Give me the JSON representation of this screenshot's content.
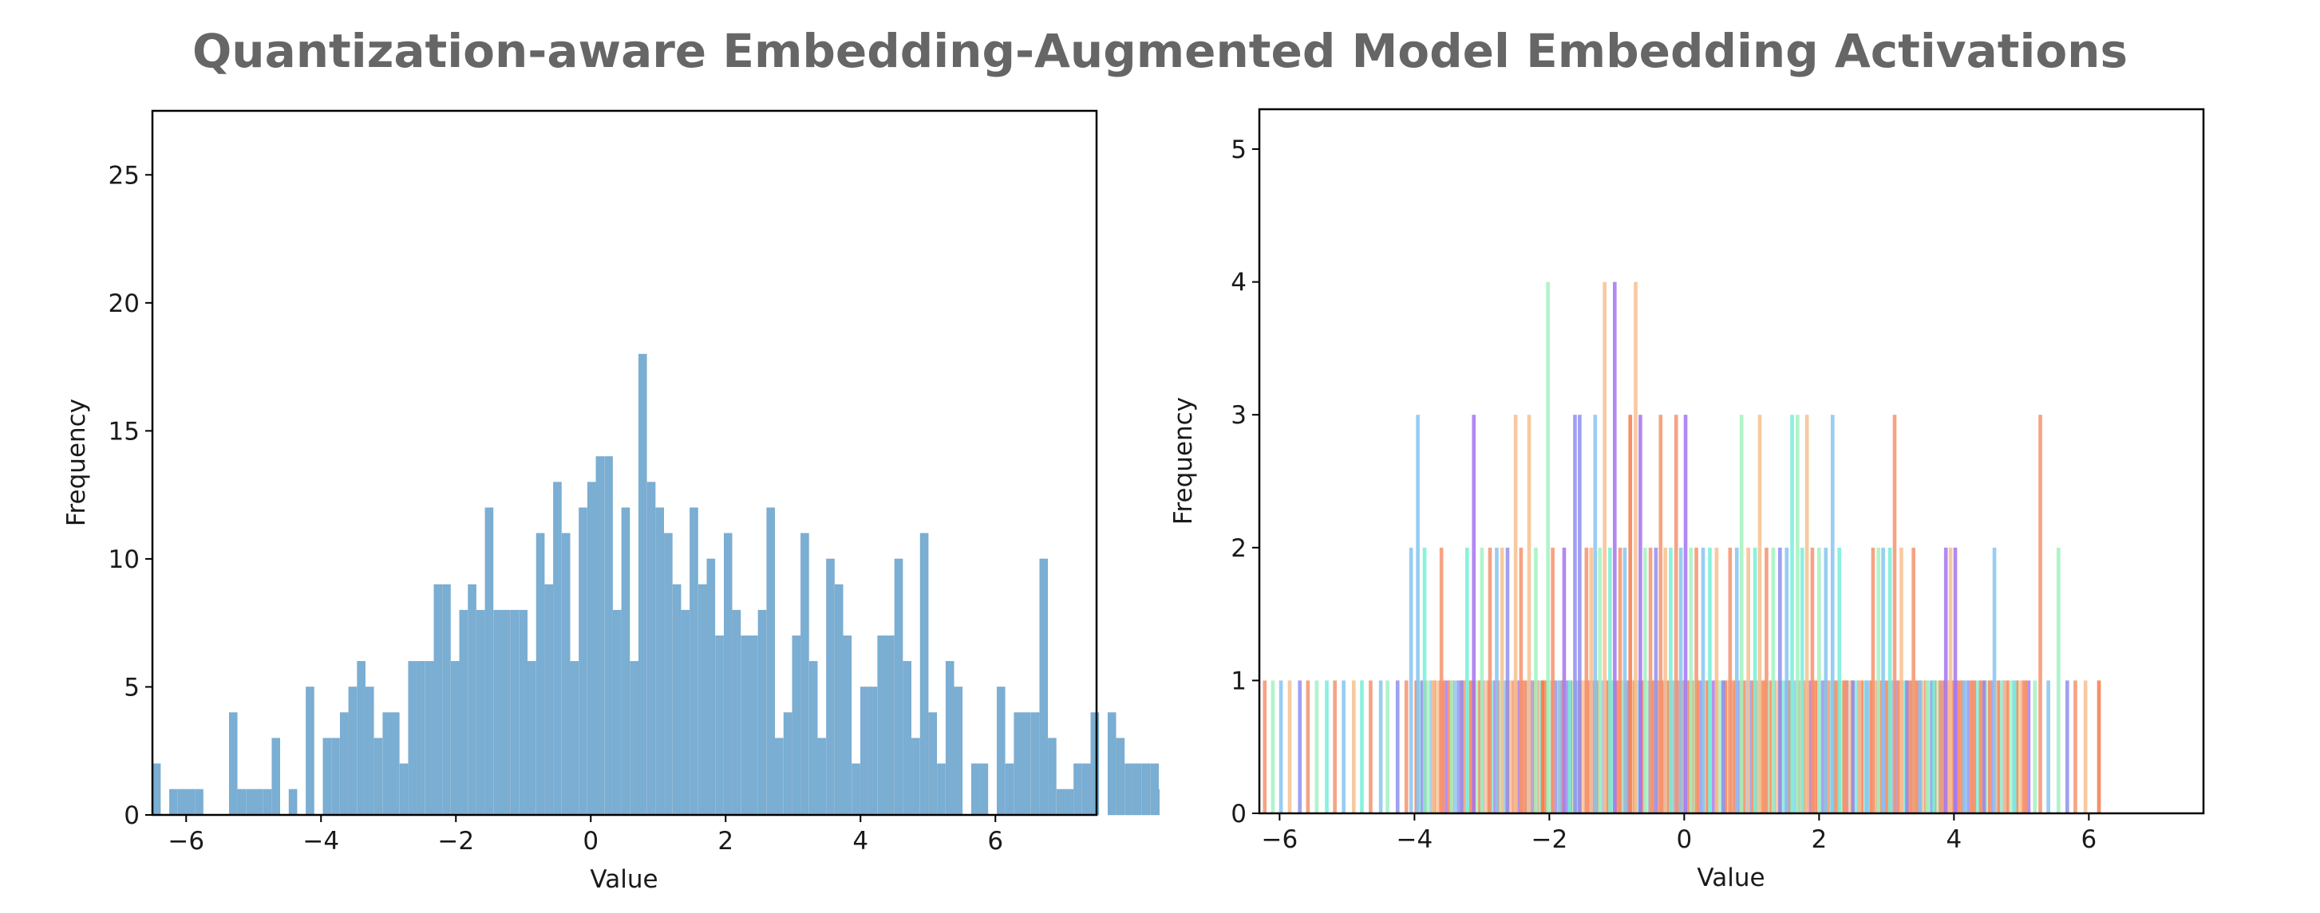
{
  "title": "Quantization-aware Embedding-Augmented Model Embedding Activations",
  "colors": {
    "title": "#666666",
    "left_bars": "#7aaed3",
    "right_palette": [
      "#f4936e",
      "#87c4f0",
      "#a574f0",
      "#f7c08f",
      "#a2f2bf",
      "#76eed8",
      "#8f8ff0",
      "#f47b4a"
    ]
  },
  "chart_data": [
    {
      "type": "bar",
      "subtype": "histogram",
      "title": "",
      "xlabel": "Value",
      "ylabel": "Frequency",
      "xlim": [
        -6.5,
        7.5
      ],
      "ylim": [
        0,
        27.5
      ],
      "xticks": [
        -6,
        -4,
        -2,
        0,
        2,
        4,
        6
      ],
      "xtick_labels": [
        "−6",
        "−4",
        "−2",
        "0",
        "2",
        "4",
        "6"
      ],
      "yticks": [
        0,
        5,
        10,
        15,
        20,
        25
      ],
      "ytick_labels": [
        "0",
        "5",
        "10",
        "15",
        "20",
        "25"
      ],
      "bin_start": -6.5,
      "bin_width": 0.1265,
      "counts": [
        2,
        0,
        1,
        1,
        1,
        1,
        0,
        0,
        0,
        4,
        1,
        1,
        1,
        1,
        3,
        0,
        1,
        0,
        5,
        0,
        3,
        3,
        4,
        5,
        6,
        5,
        3,
        4,
        4,
        2,
        6,
        6,
        6,
        9,
        9,
        6,
        8,
        9,
        8,
        12,
        8,
        8,
        8,
        8,
        6,
        11,
        9,
        13,
        11,
        6,
        12,
        13,
        14,
        14,
        8,
        12,
        6,
        18,
        13,
        12,
        11,
        9,
        8,
        12,
        9,
        10,
        7,
        11,
        8,
        7,
        7,
        8,
        12,
        3,
        4,
        7,
        11,
        6,
        3,
        10,
        9,
        7,
        2,
        5,
        5,
        7,
        7,
        10,
        6,
        3,
        11,
        4,
        2,
        6,
        5,
        0,
        2,
        2,
        0,
        5,
        2,
        4,
        4,
        4,
        10,
        3,
        1,
        1,
        2,
        2,
        4,
        0,
        4,
        3,
        2,
        2,
        2,
        2,
        1,
        0,
        2
      ],
      "grid": false,
      "legend": "none"
    },
    {
      "type": "bar",
      "subtype": "overlaid-histograms",
      "title": "",
      "xlabel": "Value",
      "ylabel": "Frequency",
      "xlim": [
        -6.3,
        7.7
      ],
      "ylim": [
        0,
        5.3
      ],
      "xticks": [
        -6,
        -4,
        -2,
        0,
        2,
        4,
        6
      ],
      "xtick_labels": [
        "−6",
        "−4",
        "−2",
        "0",
        "2",
        "4",
        "6"
      ],
      "yticks": [
        0,
        1,
        2,
        3,
        4,
        5
      ],
      "ytick_labels": [
        "0",
        "1",
        "2",
        "3",
        "4",
        "5"
      ],
      "bar_width": 0.055,
      "bars": [
        {
          "x": -6.22,
          "y": 1,
          "c": 0
        },
        {
          "x": -6.1,
          "y": 1,
          "c": 4
        },
        {
          "x": -5.98,
          "y": 1,
          "c": 1
        },
        {
          "x": -5.85,
          "y": 1,
          "c": 3
        },
        {
          "x": -5.7,
          "y": 1,
          "c": 6
        },
        {
          "x": -5.58,
          "y": 1,
          "c": 0
        },
        {
          "x": -5.45,
          "y": 1,
          "c": 4
        },
        {
          "x": -5.3,
          "y": 1,
          "c": 5
        },
        {
          "x": -5.18,
          "y": 1,
          "c": 0
        },
        {
          "x": -5.05,
          "y": 1,
          "c": 1
        },
        {
          "x": -4.9,
          "y": 1,
          "c": 3
        },
        {
          "x": -4.78,
          "y": 1,
          "c": 5
        },
        {
          "x": -4.65,
          "y": 1,
          "c": 0
        },
        {
          "x": -4.5,
          "y": 1,
          "c": 1
        },
        {
          "x": -4.4,
          "y": 1,
          "c": 4
        },
        {
          "x": -4.25,
          "y": 1,
          "c": 6
        },
        {
          "x": -4.12,
          "y": 1,
          "c": 0
        },
        {
          "x": -4.05,
          "y": 2,
          "c": 1
        },
        {
          "x": -3.95,
          "y": 3,
          "c": 1
        },
        {
          "x": -3.85,
          "y": 2,
          "c": 5
        },
        {
          "x": -3.72,
          "y": 1,
          "c": 3
        },
        {
          "x": -3.6,
          "y": 2,
          "c": 0
        },
        {
          "x": -3.45,
          "y": 1,
          "c": 4
        },
        {
          "x": -3.3,
          "y": 1,
          "c": 6
        },
        {
          "x": -3.22,
          "y": 2,
          "c": 5
        },
        {
          "x": -3.12,
          "y": 3,
          "c": 2
        },
        {
          "x": -3.0,
          "y": 2,
          "c": 4
        },
        {
          "x": -2.88,
          "y": 2,
          "c": 0
        },
        {
          "x": -2.78,
          "y": 2,
          "c": 1
        },
        {
          "x": -2.7,
          "y": 2,
          "c": 3
        },
        {
          "x": -2.62,
          "y": 2,
          "c": 6
        },
        {
          "x": -2.5,
          "y": 3,
          "c": 3
        },
        {
          "x": -2.42,
          "y": 2,
          "c": 0
        },
        {
          "x": -2.3,
          "y": 3,
          "c": 3
        },
        {
          "x": -2.2,
          "y": 2,
          "c": 4
        },
        {
          "x": -2.1,
          "y": 1,
          "c": 7
        },
        {
          "x": -2.02,
          "y": 4,
          "c": 4
        },
        {
          "x": -1.95,
          "y": 2,
          "c": 0
        },
        {
          "x": -1.85,
          "y": 1,
          "c": 1
        },
        {
          "x": -1.78,
          "y": 2,
          "c": 2
        },
        {
          "x": -1.7,
          "y": 1,
          "c": 5
        },
        {
          "x": -1.62,
          "y": 3,
          "c": 6
        },
        {
          "x": -1.55,
          "y": 3,
          "c": 6
        },
        {
          "x": -1.45,
          "y": 2,
          "c": 0
        },
        {
          "x": -1.38,
          "y": 2,
          "c": 3
        },
        {
          "x": -1.32,
          "y": 3,
          "c": 1
        },
        {
          "x": -1.25,
          "y": 2,
          "c": 4
        },
        {
          "x": -1.18,
          "y": 4,
          "c": 3
        },
        {
          "x": -1.1,
          "y": 2,
          "c": 5
        },
        {
          "x": -1.03,
          "y": 4,
          "c": 2
        },
        {
          "x": -0.95,
          "y": 2,
          "c": 0
        },
        {
          "x": -0.88,
          "y": 2,
          "c": 1
        },
        {
          "x": -0.8,
          "y": 3,
          "c": 7
        },
        {
          "x": -0.72,
          "y": 4,
          "c": 3
        },
        {
          "x": -0.65,
          "y": 3,
          "c": 2
        },
        {
          "x": -0.58,
          "y": 2,
          "c": 4
        },
        {
          "x": -0.5,
          "y": 2,
          "c": 0
        },
        {
          "x": -0.42,
          "y": 2,
          "c": 6
        },
        {
          "x": -0.35,
          "y": 3,
          "c": 0
        },
        {
          "x": -0.28,
          "y": 2,
          "c": 3
        },
        {
          "x": -0.2,
          "y": 2,
          "c": 5
        },
        {
          "x": -0.12,
          "y": 3,
          "c": 0
        },
        {
          "x": -0.05,
          "y": 2,
          "c": 1
        },
        {
          "x": 0.02,
          "y": 3,
          "c": 2
        },
        {
          "x": 0.1,
          "y": 2,
          "c": 4
        },
        {
          "x": 0.18,
          "y": 2,
          "c": 0
        },
        {
          "x": 0.28,
          "y": 2,
          "c": 1
        },
        {
          "x": 0.38,
          "y": 2,
          "c": 5
        },
        {
          "x": 0.48,
          "y": 2,
          "c": 3
        },
        {
          "x": 0.58,
          "y": 1,
          "c": 6
        },
        {
          "x": 0.68,
          "y": 2,
          "c": 0
        },
        {
          "x": 0.78,
          "y": 2,
          "c": 1
        },
        {
          "x": 0.85,
          "y": 3,
          "c": 4
        },
        {
          "x": 0.95,
          "y": 2,
          "c": 3
        },
        {
          "x": 1.05,
          "y": 2,
          "c": 5
        },
        {
          "x": 1.12,
          "y": 3,
          "c": 3
        },
        {
          "x": 1.22,
          "y": 2,
          "c": 0
        },
        {
          "x": 1.32,
          "y": 2,
          "c": 4
        },
        {
          "x": 1.42,
          "y": 2,
          "c": 6
        },
        {
          "x": 1.52,
          "y": 2,
          "c": 1
        },
        {
          "x": 1.6,
          "y": 3,
          "c": 5
        },
        {
          "x": 1.68,
          "y": 3,
          "c": 4
        },
        {
          "x": 1.75,
          "y": 2,
          "c": 5
        },
        {
          "x": 1.82,
          "y": 3,
          "c": 3
        },
        {
          "x": 1.9,
          "y": 2,
          "c": 0
        },
        {
          "x": 2.0,
          "y": 2,
          "c": 4
        },
        {
          "x": 2.1,
          "y": 2,
          "c": 1
        },
        {
          "x": 2.2,
          "y": 3,
          "c": 1
        },
        {
          "x": 2.3,
          "y": 2,
          "c": 5
        },
        {
          "x": 2.4,
          "y": 1,
          "c": 0
        },
        {
          "x": 2.5,
          "y": 1,
          "c": 6
        },
        {
          "x": 2.6,
          "y": 1,
          "c": 3
        },
        {
          "x": 2.7,
          "y": 1,
          "c": 1
        },
        {
          "x": 2.8,
          "y": 2,
          "c": 0
        },
        {
          "x": 2.88,
          "y": 2,
          "c": 4
        },
        {
          "x": 2.95,
          "y": 2,
          "c": 1
        },
        {
          "x": 3.05,
          "y": 2,
          "c": 5
        },
        {
          "x": 3.12,
          "y": 3,
          "c": 0
        },
        {
          "x": 3.22,
          "y": 2,
          "c": 3
        },
        {
          "x": 3.3,
          "y": 1,
          "c": 6
        },
        {
          "x": 3.4,
          "y": 2,
          "c": 0
        },
        {
          "x": 3.5,
          "y": 1,
          "c": 1
        },
        {
          "x": 3.6,
          "y": 1,
          "c": 4
        },
        {
          "x": 3.7,
          "y": 1,
          "c": 5
        },
        {
          "x": 3.8,
          "y": 1,
          "c": 0
        },
        {
          "x": 3.88,
          "y": 2,
          "c": 2
        },
        {
          "x": 3.95,
          "y": 2,
          "c": 3
        },
        {
          "x": 4.02,
          "y": 2,
          "c": 2
        },
        {
          "x": 4.15,
          "y": 1,
          "c": 1
        },
        {
          "x": 4.3,
          "y": 1,
          "c": 0
        },
        {
          "x": 4.45,
          "y": 1,
          "c": 6
        },
        {
          "x": 4.6,
          "y": 2,
          "c": 1
        },
        {
          "x": 4.75,
          "y": 1,
          "c": 3
        },
        {
          "x": 4.9,
          "y": 1,
          "c": 5
        },
        {
          "x": 5.05,
          "y": 1,
          "c": 0
        },
        {
          "x": 5.2,
          "y": 1,
          "c": 4
        },
        {
          "x": 5.28,
          "y": 3,
          "c": 0
        },
        {
          "x": 5.4,
          "y": 1,
          "c": 1
        },
        {
          "x": 5.55,
          "y": 2,
          "c": 4
        },
        {
          "x": 5.68,
          "y": 1,
          "c": 6
        },
        {
          "x": 5.8,
          "y": 1,
          "c": 0
        },
        {
          "x": 5.95,
          "y": 1,
          "c": 3
        },
        {
          "x": 6.15,
          "y": 1,
          "c": 7
        }
      ],
      "dense_fill": {
        "from": -4.0,
        "to": 5.1,
        "height": 1,
        "dominant_color": 7
      },
      "grid": false,
      "legend": "none"
    }
  ]
}
